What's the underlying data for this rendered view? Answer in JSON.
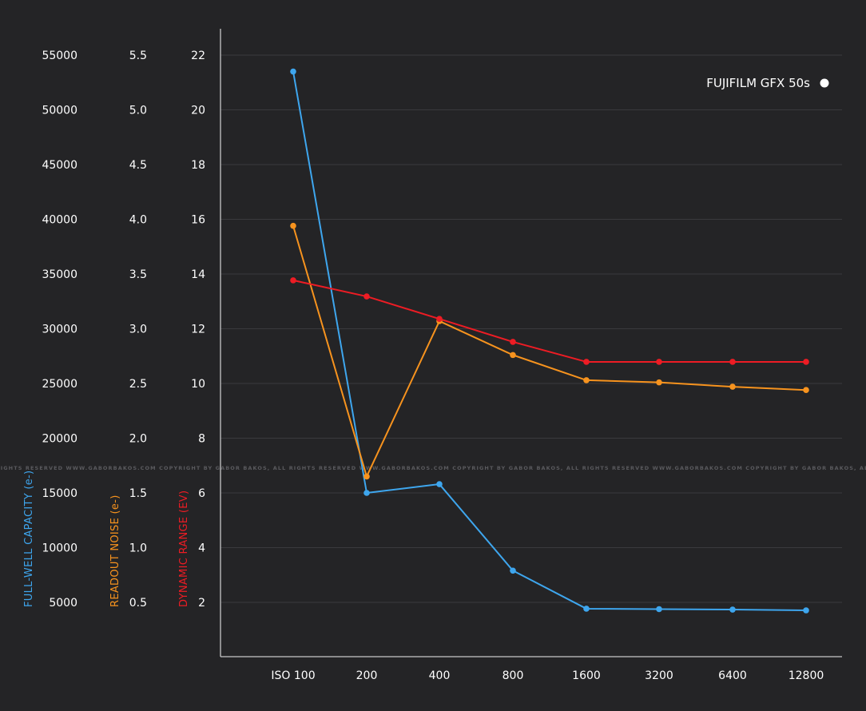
{
  "chart_data": {
    "type": "line",
    "title": "",
    "legend": {
      "entries": [
        "FUJIFILM GFX 50s"
      ],
      "placement": "top-right"
    },
    "categories": [
      "ISO 100",
      "200",
      "400",
      "800",
      "1600",
      "3200",
      "6400",
      "12800"
    ],
    "xlabel": "",
    "grid": true,
    "axes": [
      {
        "id": "fwc",
        "label": "FULL-WELL CAPACITY",
        "unit": "(e-)",
        "color": "#3ea6ee",
        "range": [
          0,
          55000
        ],
        "ticks": [
          "55000",
          "50000",
          "45000",
          "40000",
          "35000",
          "30000",
          "25000",
          "20000",
          "15000",
          "10000",
          "5000"
        ]
      },
      {
        "id": "noise",
        "label": "READOUT NOISE",
        "unit": "(e-)",
        "color": "#f7931e",
        "range": [
          0,
          5.5
        ],
        "ticks": [
          "5.5",
          "5.0",
          "4.5",
          "4.0",
          "3.5",
          "3.0",
          "2.5",
          "2.0",
          "1.5",
          "1.0",
          "0.5"
        ]
      },
      {
        "id": "dr",
        "label": "DYNAMIC RANGE",
        "unit": "(EV)",
        "color": "#ed1c24",
        "range": [
          0,
          22
        ],
        "ticks": [
          "22",
          "20",
          "18",
          "16",
          "14",
          "12",
          "10",
          "8",
          "6",
          "4",
          "2"
        ]
      }
    ],
    "series": [
      {
        "name": "Full-well capacity",
        "axis": "fwc",
        "color": "#3ea6ee",
        "values": [
          53500,
          15000,
          15800,
          7900,
          4420,
          4380,
          4340,
          4270
        ]
      },
      {
        "name": "Readout noise",
        "axis": "noise",
        "color": "#f7931e",
        "values": [
          3.94,
          1.65,
          3.07,
          2.76,
          2.53,
          2.51,
          2.47,
          2.44
        ]
      },
      {
        "name": "Dynamic range",
        "axis": "dr",
        "color": "#ed1c24",
        "values": [
          13.77,
          13.18,
          12.36,
          11.52,
          10.79,
          10.79,
          10.79,
          10.79
        ]
      }
    ],
    "watermark": "COPYRIGHT BY GABOR BAKOS, ALL RIGHTS RESERVED WWW.GABORBAKOS.COM"
  }
}
